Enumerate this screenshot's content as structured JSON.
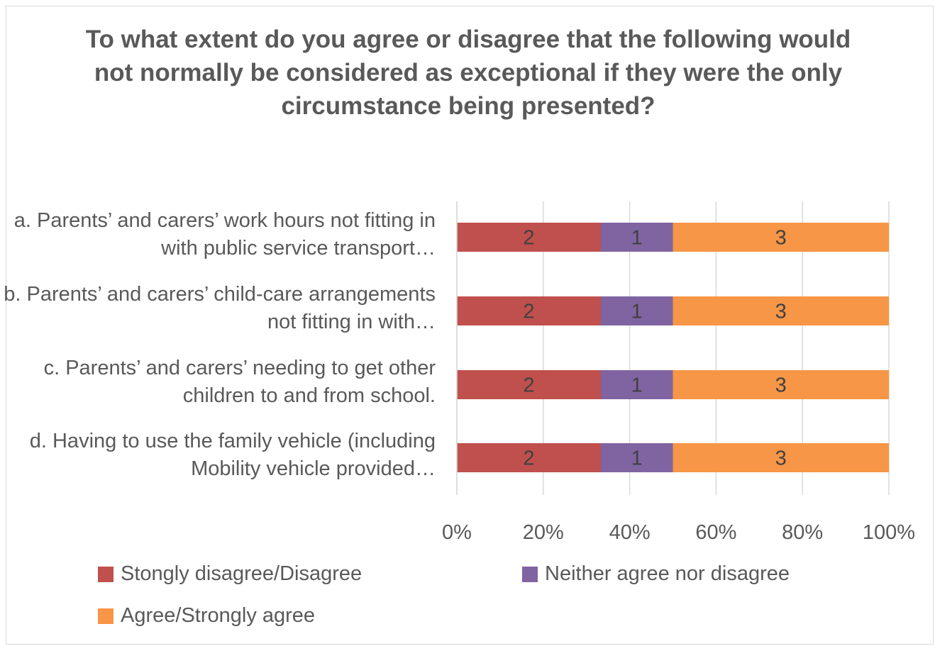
{
  "chart_data": {
    "type": "bar",
    "orientation": "horizontal",
    "stacked": "percent",
    "title": "To what extent do you agree or disagree that the following would not normally be considered as exceptional if they were the only circumstance being presented?",
    "categories": [
      "a. Parents’ and carers’ work hours not fitting in with public service transport…",
      "b. Parents’ and carers’ child-care arrangements not fitting in with…",
      "c. Parents’ and carers’ needing to get other children to and from school.",
      "d. Having to use the family vehicle (including Mobility vehicle provided…"
    ],
    "series": [
      {
        "name": "Stongly disagree/Disagree",
        "values": [
          2,
          2,
          2,
          2
        ],
        "color": "#c0504d"
      },
      {
        "name": "Neither agree nor disagree",
        "values": [
          1,
          1,
          1,
          1
        ],
        "color": "#8064a2"
      },
      {
        "name": "Agree/Strongly agree",
        "values": [
          3,
          3,
          3,
          3
        ],
        "color": "#f79646"
      }
    ],
    "x_ticks": [
      "0%",
      "20%",
      "40%",
      "60%",
      "80%",
      "100%"
    ],
    "xlim": [
      0,
      100
    ],
    "grid": true,
    "legend_position": "bottom"
  }
}
